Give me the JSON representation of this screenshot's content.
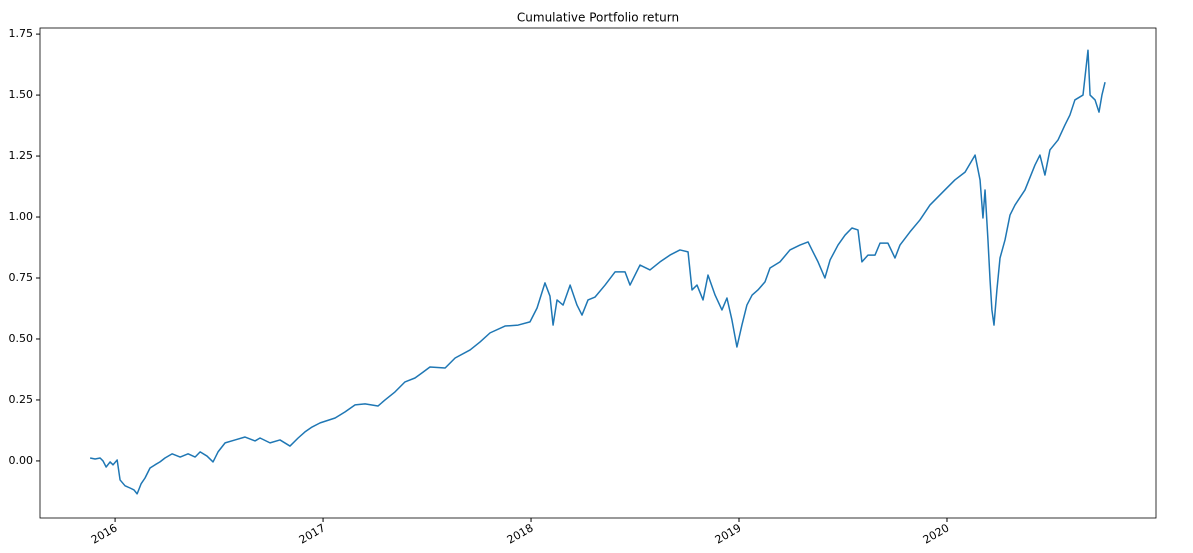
{
  "chart_data": {
    "type": "line",
    "title": "Cumulative Portfolio return",
    "color": "#1f77b4",
    "x": [
      2015.88,
      2015.904,
      2015.928,
      2015.942,
      2015.957,
      2015.976,
      2015.99,
      2016.01,
      2016.024,
      2016.048,
      2016.072,
      2016.091,
      2016.106,
      2016.125,
      2016.144,
      2016.168,
      2016.192,
      2016.216,
      2016.24,
      2016.274,
      2016.313,
      2016.351,
      2016.385,
      2016.409,
      2016.442,
      2016.471,
      2016.495,
      2016.529,
      2016.577,
      2016.625,
      2016.673,
      2016.697,
      2016.745,
      2016.793,
      2016.841,
      2016.88,
      2016.913,
      2016.947,
      2016.986,
      2017.058,
      2017.106,
      2017.154,
      2017.202,
      2017.264,
      2017.298,
      2017.346,
      2017.394,
      2017.442,
      2017.476,
      2017.514,
      2017.587,
      2017.635,
      2017.707,
      2017.755,
      2017.803,
      2017.875,
      2017.938,
      2017.995,
      2018.029,
      2018.067,
      2018.091,
      2018.106,
      2018.125,
      2018.154,
      2018.188,
      2018.221,
      2018.245,
      2018.274,
      2018.308,
      2018.356,
      2018.404,
      2018.452,
      2018.476,
      2018.524,
      2018.572,
      2018.62,
      2018.668,
      2018.716,
      2018.755,
      2018.774,
      2018.798,
      2018.827,
      2018.851,
      2018.885,
      2018.918,
      2018.942,
      2018.966,
      2018.99,
      2019.014,
      2019.038,
      2019.063,
      2019.091,
      2019.125,
      2019.149,
      2019.197,
      2019.245,
      2019.293,
      2019.332,
      2019.351,
      2019.38,
      2019.413,
      2019.438,
      2019.476,
      2019.51,
      2019.543,
      2019.572,
      2019.591,
      2019.62,
      2019.654,
      2019.678,
      2019.716,
      2019.75,
      2019.774,
      2019.822,
      2019.87,
      2019.918,
      2019.99,
      2020.038,
      2020.087,
      2020.135,
      2020.159,
      2020.173,
      2020.183,
      2020.197,
      2020.207,
      2020.216,
      2020.226,
      2020.24,
      2020.255,
      2020.279,
      2020.303,
      2020.327,
      2020.375,
      2020.423,
      2020.447,
      2020.471,
      2020.495,
      2020.534,
      2020.567,
      2020.591,
      2020.615,
      2020.654,
      2020.678,
      2020.688,
      2020.712,
      2020.731,
      2020.745,
      2020.76
    ],
    "values": [
      0.012,
      0.008,
      0.012,
      0,
      -0.025,
      -0.004,
      -0.016,
      0.004,
      -0.078,
      -0.102,
      -0.111,
      -0.119,
      -0.135,
      -0.094,
      -0.07,
      -0.029,
      -0.016,
      -0.004,
      0.012,
      0.029,
      0.016,
      0.029,
      0.016,
      0.037,
      0.02,
      -0.004,
      0.037,
      0.074,
      0.086,
      0.098,
      0.082,
      0.094,
      0.074,
      0.086,
      0.061,
      0.094,
      0.119,
      0.139,
      0.156,
      0.176,
      0.201,
      0.23,
      0.234,
      0.225,
      0.25,
      0.283,
      0.324,
      0.34,
      0.361,
      0.385,
      0.381,
      0.422,
      0.455,
      0.488,
      0.525,
      0.553,
      0.557,
      0.57,
      0.627,
      0.73,
      0.676,
      0.557,
      0.66,
      0.639,
      0.721,
      0.639,
      0.598,
      0.66,
      0.672,
      0.721,
      0.775,
      0.775,
      0.721,
      0.803,
      0.783,
      0.816,
      0.844,
      0.865,
      0.857,
      0.701,
      0.721,
      0.66,
      0.762,
      0.68,
      0.619,
      0.668,
      0.578,
      0.467,
      0.557,
      0.639,
      0.68,
      0.701,
      0.734,
      0.791,
      0.816,
      0.865,
      0.885,
      0.898,
      0.865,
      0.816,
      0.75,
      0.824,
      0.885,
      0.926,
      0.955,
      0.947,
      0.816,
      0.844,
      0.844,
      0.893,
      0.893,
      0.832,
      0.885,
      0.939,
      0.988,
      1.049,
      1.111,
      1.152,
      1.184,
      1.254,
      1.152,
      0.996,
      1.111,
      0.906,
      0.742,
      0.619,
      0.557,
      0.701,
      0.832,
      0.906,
      1.008,
      1.049,
      1.111,
      1.213,
      1.254,
      1.172,
      1.275,
      1.316,
      1.377,
      1.418,
      1.48,
      1.5,
      1.684,
      1.5,
      1.48,
      1.43,
      1.5,
      1.553
    ],
    "xlim": [
      2015.639,
      2021.005
    ],
    "xticks": [
      2016,
      2017,
      2018,
      2019,
      2020
    ],
    "ylim": [
      -0.234,
      1.775
    ],
    "yticks": [
      {
        "value": 0,
        "label": "0.00"
      },
      {
        "value": 0.25,
        "label": "0.25"
      },
      {
        "value": 0.5,
        "label": "0.50"
      },
      {
        "value": 0.75,
        "label": "0.75"
      },
      {
        "value": 1,
        "label": "1.00"
      },
      {
        "value": 1.25,
        "label": "1.25"
      },
      {
        "value": 1.5,
        "label": "1.50"
      },
      {
        "value": 1.75,
        "label": "1.75"
      }
    ],
    "grid": false
  }
}
